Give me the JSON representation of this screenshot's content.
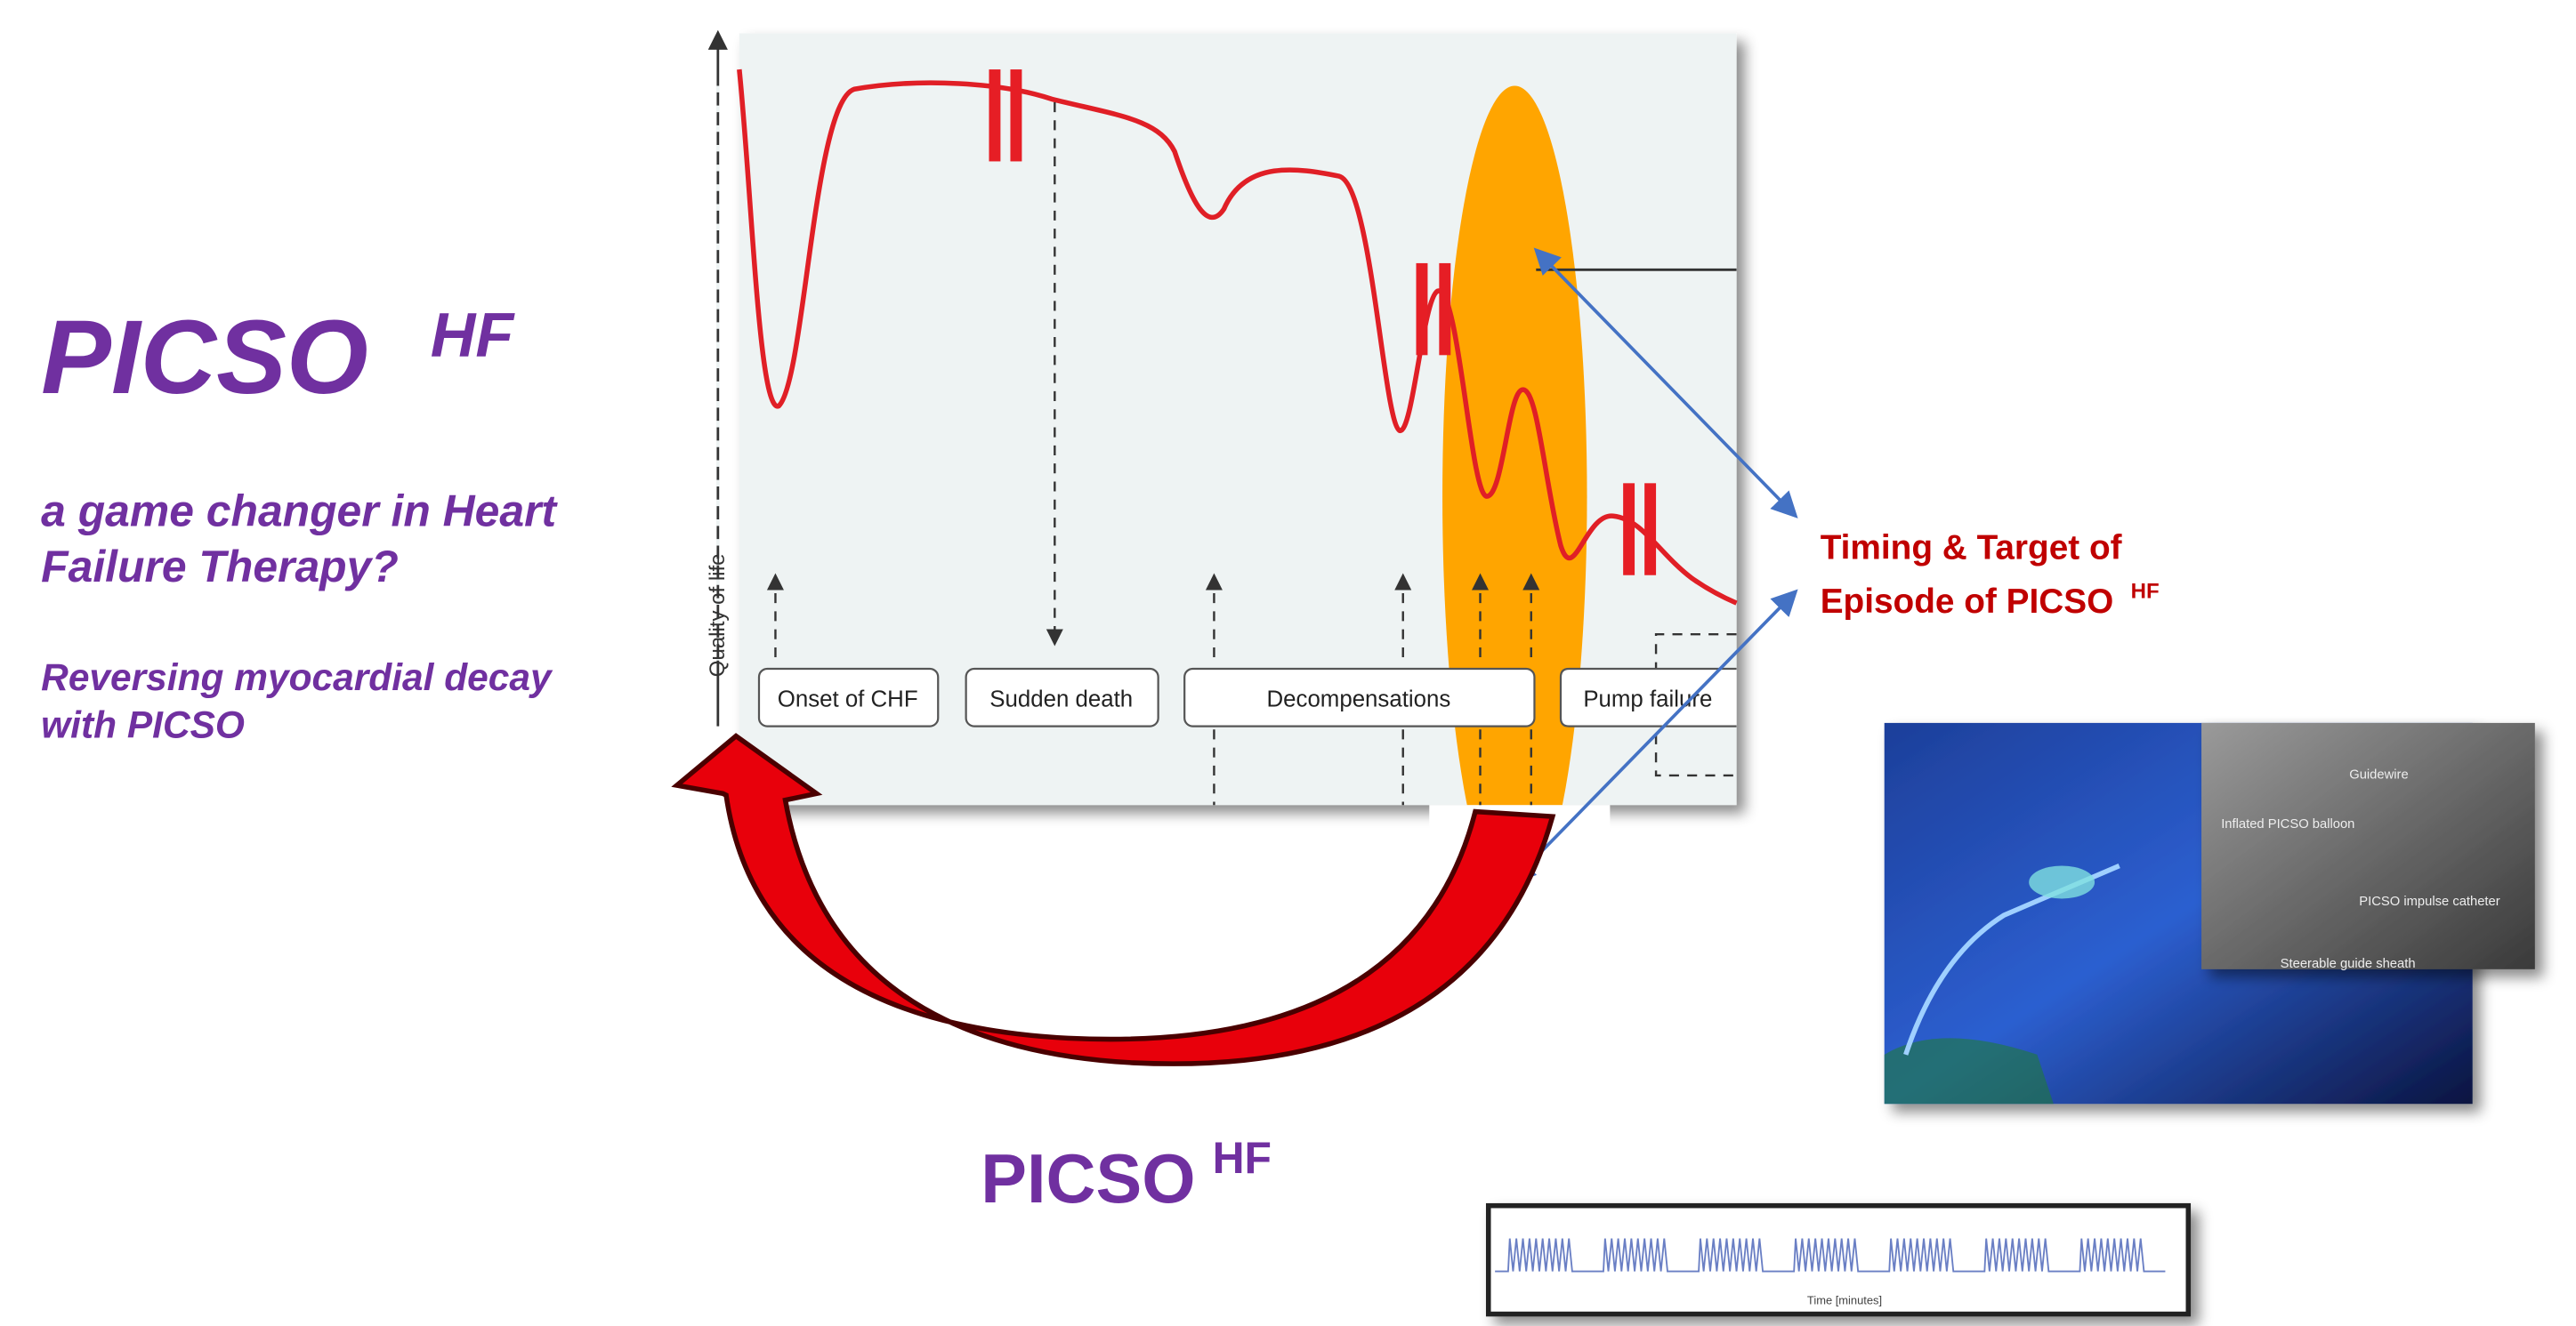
{
  "title": {
    "text": "PICSO",
    "superscript": "HF"
  },
  "subtitle": [
    "a game changer in Heart",
    "Failure Therapy?"
  ],
  "tagline": [
    "Reversing myocardial decay",
    "with PICSO"
  ],
  "diagram": {
    "y_axis_label": "Quality of life",
    "stages": [
      "Onset of CHF",
      "Sudden death",
      "Decompensations",
      "Pump failure"
    ]
  },
  "callout": {
    "lines": [
      "Timing & Target of",
      "Episode of PICSO"
    ],
    "superscript": "HF"
  },
  "arrow_label": {
    "text": "PICSO",
    "superscript": "HF"
  },
  "image_labels": [
    "Guidewire",
    "Inflated PICSO balloon",
    "PICSO impulse catheter",
    "Steerable guide sheath"
  ],
  "waveform_label": "Time [minutes]"
}
